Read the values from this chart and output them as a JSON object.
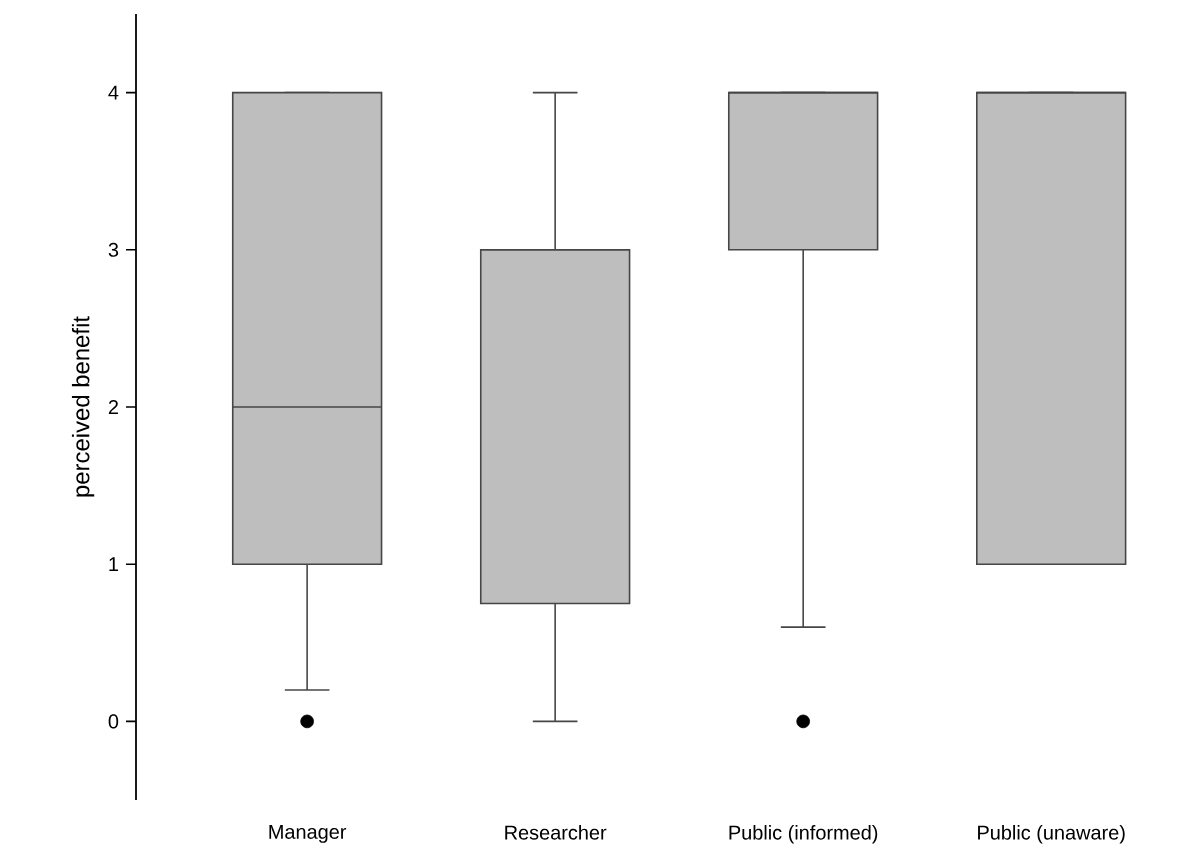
{
  "chart_data": {
    "type": "box",
    "ylabel": "perceived benefit",
    "categories": [
      "Manager",
      "Researcher",
      "Public (informed)",
      "Public (unaware)"
    ],
    "color": "#bebebe",
    "boxes": [
      {
        "low": 0.2,
        "q1": 1,
        "median": 2,
        "q3": 4,
        "high": 4,
        "outliers": [
          0
        ]
      },
      {
        "low": 0,
        "q1": 0.75,
        "median": 3,
        "q3": 3,
        "high": 4
      },
      {
        "low": 0.6,
        "q1": 3,
        "median": 4,
        "q3": 4,
        "high": 4,
        "outliers": [
          0
        ]
      },
      {
        "low": 1,
        "q1": 1,
        "median": 4,
        "q3": 4,
        "high": 4
      }
    ],
    "ylim": [
      -0.5,
      4.5
    ],
    "yticks": [
      0,
      1,
      2,
      3,
      4
    ]
  }
}
